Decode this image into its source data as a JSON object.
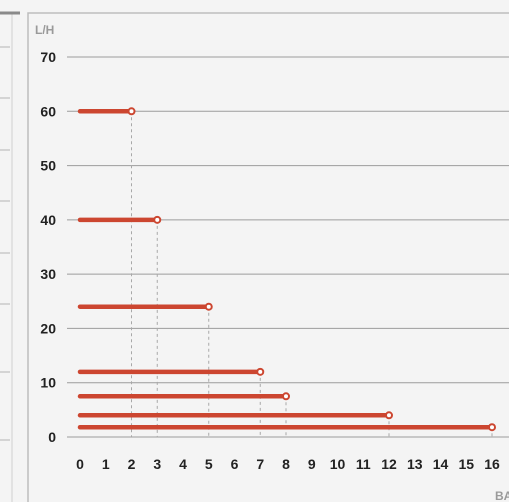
{
  "chart_data": {
    "type": "line",
    "title": "",
    "ylabel": "L/H",
    "xlabel": "BAR",
    "x_ticks": [
      0,
      1,
      2,
      3,
      4,
      5,
      6,
      7,
      8,
      9,
      10,
      11,
      12,
      13,
      14,
      15,
      16
    ],
    "y_ticks": [
      0,
      10,
      20,
      30,
      40,
      50,
      60,
      70
    ],
    "xlim": [
      0,
      16
    ],
    "ylim": [
      0,
      70
    ],
    "grid": "horizontal",
    "series": [
      {
        "values": [
          {
            "x": 0,
            "y": 60
          },
          {
            "x": 2,
            "y": 60
          }
        ]
      },
      {
        "values": [
          {
            "x": 0,
            "y": 40
          },
          {
            "x": 3,
            "y": 40
          }
        ]
      },
      {
        "values": [
          {
            "x": 0,
            "y": 24
          },
          {
            "x": 5,
            "y": 24
          }
        ]
      },
      {
        "values": [
          {
            "x": 0,
            "y": 12
          },
          {
            "x": 7,
            "y": 12
          }
        ]
      },
      {
        "values": [
          {
            "x": 0,
            "y": 7.5
          },
          {
            "x": 8,
            "y": 7.5
          }
        ]
      },
      {
        "values": [
          {
            "x": 0,
            "y": 4
          },
          {
            "x": 12,
            "y": 4
          }
        ]
      },
      {
        "values": [
          {
            "x": 0,
            "y": 1.8
          },
          {
            "x": 16,
            "y": 1.8
          }
        ]
      }
    ],
    "colors": {
      "line": "#cc4630",
      "grid": "#9c9c9c",
      "guide": "#a8a8a8",
      "frame": "#bdbdbd"
    }
  }
}
